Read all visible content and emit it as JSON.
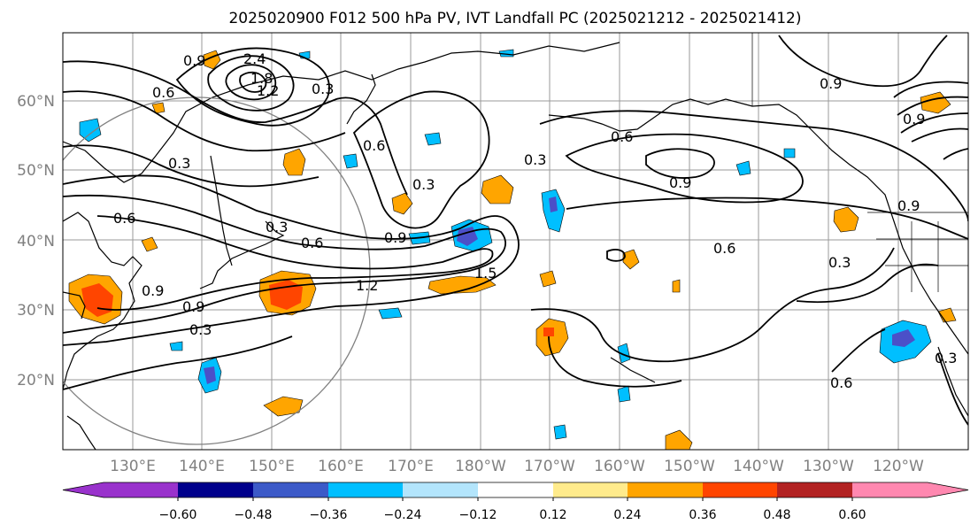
{
  "title": "2025020900 F012 500 hPa PV, IVT Landfall PC (2025021212 - 2025021412)",
  "map": {
    "lat_ticks": [
      "60°N",
      "50°N",
      "40°N",
      "30°N",
      "20°N"
    ],
    "lon_ticks": [
      "130°E",
      "140°E",
      "150°E",
      "160°E",
      "170°E",
      "180°W",
      "170°W",
      "160°W",
      "150°W",
      "140°W",
      "130°W",
      "120°W"
    ],
    "grid": true,
    "contour_labels": [
      "0.9",
      "0.6",
      "2.4",
      "1.8",
      "1.2",
      "0.3",
      "0.3",
      "0.6",
      "0.3",
      "0.6",
      "0.9",
      "0.3",
      "0.6",
      "0.9",
      "0.3",
      "0.9",
      "1.2",
      "1.5",
      "0.9",
      "0.3",
      "0.6",
      "0.3",
      "0.9",
      "0.6",
      "0.9",
      "0.9",
      "0.3",
      "0.6"
    ],
    "shading_colors": {
      "strong_negative": "#4b50c8",
      "negative": "#00bfff",
      "weak_negative": "#b3e5fc",
      "weak_positive": "#ffe680",
      "positive": "#ffa500",
      "strong_positive": "#ff4500"
    }
  },
  "colorbar": {
    "tick_labels": [
      "−0.60",
      "−0.48",
      "−0.36",
      "−0.24",
      "−0.12",
      "0.12",
      "0.24",
      "0.36",
      "0.48",
      "0.60"
    ],
    "colors": [
      "#9932cc",
      "#00008b",
      "#3c5ac8",
      "#00bfff",
      "#b3e5fc",
      "#ffffff",
      "#ffeb8c",
      "#ffa500",
      "#ff4500",
      "#b22222",
      "#ff88b0"
    ],
    "extend": "both"
  }
}
